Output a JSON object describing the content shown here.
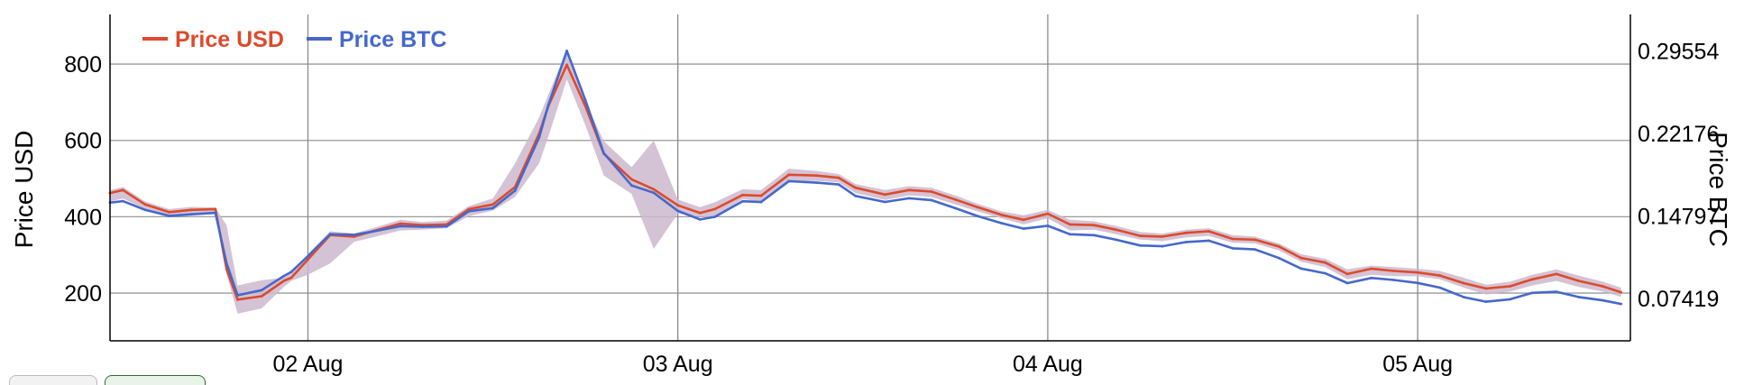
{
  "chart_data": {
    "type": "line",
    "title": "",
    "y_left_label": "Price USD",
    "y_right_label": "Price BTC",
    "ylim_left": [
      75,
      930
    ],
    "ylim_right": [
      0.0362,
      0.3281
    ],
    "y_left_ticks": [
      "200",
      "400",
      "600",
      "800"
    ],
    "y_right_ticks": [
      "0.07419",
      "0.14797",
      "0.22176",
      "0.29554"
    ],
    "x_ticks": [
      "02 Aug",
      "03 Aug",
      "04 Aug",
      "05 Aug"
    ],
    "x_tick_positions": [
      1.0,
      3.0,
      5.0,
      7.0
    ],
    "xlim": [
      -0.07,
      8.15
    ],
    "grid": true,
    "legend_position": "top-left",
    "colors": {
      "usd": "#dd4a2c",
      "btc": "#4568cc",
      "band": "#cdb8cc"
    },
    "series": [
      {
        "name": "Price USD",
        "axis": "left",
        "x": [
          -0.07,
          0.0,
          0.12,
          0.25,
          0.37,
          0.5,
          0.56,
          0.62,
          0.75,
          0.87,
          0.91,
          1.0,
          1.12,
          1.25,
          1.35,
          1.5,
          1.62,
          1.75,
          1.87,
          2.0,
          2.12,
          2.25,
          2.3,
          2.4,
          2.5,
          2.6,
          2.75,
          2.87,
          3.0,
          3.12,
          3.2,
          3.35,
          3.45,
          3.6,
          3.75,
          3.87,
          3.96,
          4.12,
          4.25,
          4.37,
          4.5,
          4.62,
          4.75,
          4.87,
          5.0,
          5.12,
          5.25,
          5.37,
          5.5,
          5.62,
          5.75,
          5.87,
          6.0,
          6.12,
          6.25,
          6.37,
          6.5,
          6.62,
          6.75,
          6.87,
          7.0,
          7.12,
          7.25,
          7.37,
          7.5,
          7.62,
          7.75,
          7.87,
          8.0,
          8.1
        ],
        "values": [
          462,
          470,
          432,
          412,
          418,
          420,
          263,
          183,
          192,
          232,
          240,
          288,
          352,
          348,
          362,
          382,
          378,
          380,
          420,
          432,
          478,
          618,
          690,
          798,
          690,
          565,
          498,
          472,
          430,
          410,
          420,
          457,
          455,
          510,
          508,
          502,
          476,
          458,
          470,
          466,
          445,
          425,
          405,
          392,
          408,
          380,
          378,
          366,
          350,
          348,
          358,
          362,
          342,
          340,
          322,
          292,
          280,
          250,
          264,
          258,
          254,
          246,
          226,
          212,
          218,
          236,
          250,
          232,
          218,
          202
        ]
      },
      {
        "name": "Price BTC",
        "axis": "right",
        "x": [
          -0.07,
          0.0,
          0.12,
          0.25,
          0.37,
          0.5,
          0.56,
          0.62,
          0.75,
          0.87,
          0.91,
          1.0,
          1.12,
          1.25,
          1.35,
          1.5,
          1.62,
          1.75,
          1.87,
          2.0,
          2.12,
          2.25,
          2.3,
          2.4,
          2.5,
          2.6,
          2.75,
          2.87,
          3.0,
          3.12,
          3.2,
          3.35,
          3.45,
          3.6,
          3.75,
          3.87,
          3.96,
          4.12,
          4.25,
          4.37,
          4.5,
          4.62,
          4.75,
          4.87,
          5.0,
          5.12,
          5.25,
          5.37,
          5.5,
          5.62,
          5.75,
          5.87,
          6.0,
          6.12,
          6.25,
          6.37,
          6.5,
          6.62,
          6.75,
          6.87,
          7.0,
          7.12,
          7.25,
          7.37,
          7.5,
          7.62,
          7.75,
          7.87,
          8.0,
          8.1
        ],
        "values": [
          0.1598,
          0.1611,
          0.1533,
          0.148,
          0.1493,
          0.1506,
          0.1056,
          0.0769,
          0.0815,
          0.0942,
          0.0978,
          0.1119,
          0.1316,
          0.131,
          0.1339,
          0.1388,
          0.1382,
          0.1385,
          0.1521,
          0.1549,
          0.1705,
          0.2181,
          0.2471,
          0.2955,
          0.2516,
          0.204,
          0.1751,
          0.1686,
          0.1524,
          0.1447,
          0.1471,
          0.161,
          0.1603,
          0.179,
          0.1776,
          0.176,
          0.1658,
          0.1604,
          0.1637,
          0.1621,
          0.1548,
          0.1478,
          0.1414,
          0.1365,
          0.1391,
          0.1315,
          0.1307,
          0.1266,
          0.1214,
          0.1208,
          0.1246,
          0.1258,
          0.1189,
          0.118,
          0.1102,
          0.1008,
          0.0966,
          0.0878,
          0.0924,
          0.0906,
          0.088,
          0.0838,
          0.0752,
          0.0712,
          0.0734,
          0.0791,
          0.0801,
          0.0754,
          0.0724,
          0.0692
        ]
      }
    ],
    "band": {
      "series": "Price USD",
      "x": [
        -0.07,
        0.0,
        0.12,
        0.25,
        0.37,
        0.5,
        0.56,
        0.62,
        0.75,
        0.87,
        0.91,
        1.0,
        1.12,
        1.25,
        1.35,
        1.5,
        1.62,
        1.75,
        1.87,
        2.0,
        2.12,
        2.25,
        2.3,
        2.4,
        2.5,
        2.6,
        2.75,
        2.87,
        3.0,
        3.12,
        3.2,
        3.35,
        3.45,
        3.6,
        3.75,
        3.87,
        3.96,
        4.12,
        4.25,
        4.37,
        4.5,
        4.62,
        4.75,
        4.87,
        5.0,
        5.12,
        5.25,
        5.37,
        5.5,
        5.62,
        5.75,
        5.87,
        6.0,
        6.12,
        6.25,
        6.37,
        6.5,
        6.62,
        6.75,
        6.87,
        7.0,
        7.12,
        7.25,
        7.37,
        7.5,
        7.62,
        7.75,
        7.87,
        8.0,
        8.1
      ],
      "upper": [
        470,
        478,
        440,
        420,
        426,
        424,
        378,
        220,
        234,
        240,
        252,
        302,
        362,
        356,
        370,
        392,
        386,
        390,
        428,
        448,
        540,
        660,
        720,
        838,
        700,
        598,
        530,
        600,
        445,
        425,
        438,
        472,
        470,
        526,
        520,
        512,
        486,
        470,
        480,
        476,
        456,
        434,
        414,
        404,
        418,
        392,
        388,
        376,
        360,
        356,
        366,
        370,
        352,
        348,
        330,
        302,
        290,
        262,
        272,
        268,
        264,
        258,
        240,
        222,
        230,
        248,
        262,
        246,
        230,
        214
      ],
      "lower": [
        440,
        448,
        420,
        402,
        408,
        412,
        250,
        146,
        160,
        216,
        232,
        248,
        278,
        334,
        346,
        364,
        366,
        370,
        402,
        416,
        452,
        540,
        610,
        760,
        640,
        508,
        460,
        316,
        408,
        400,
        398,
        446,
        440,
        494,
        494,
        490,
        462,
        444,
        456,
        452,
        432,
        414,
        396,
        380,
        396,
        364,
        366,
        354,
        340,
        336,
        346,
        350,
        332,
        330,
        312,
        282,
        268,
        236,
        248,
        244,
        244,
        236,
        214,
        196,
        204,
        220,
        232,
        216,
        204,
        190
      ]
    }
  }
}
